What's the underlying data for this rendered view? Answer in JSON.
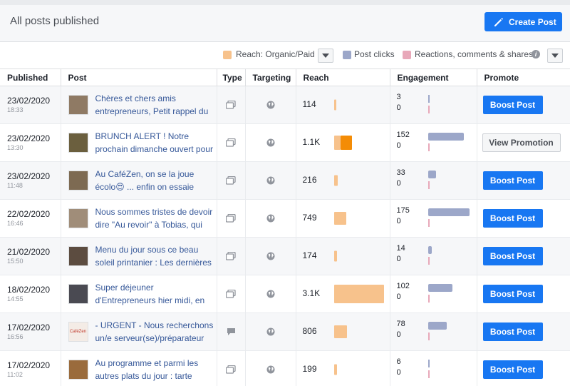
{
  "header": {
    "title": "All posts published",
    "create_label": "Create Post"
  },
  "legend": {
    "reach_label": "Reach: Organic/Paid",
    "clicks_label": "Post clicks",
    "reactions_label": "Reactions, comments & shares",
    "colors": {
      "organic": "#f7c28c",
      "paid": "#f48c06",
      "clicks": "#9ca7c9",
      "reactions": "#e8a8b9"
    }
  },
  "columns": [
    "Published",
    "Post",
    "Type",
    "Targeting",
    "Reach",
    "Engagement",
    "Promote"
  ],
  "rows": [
    {
      "date": "23/02/2020",
      "time": "18:33",
      "text": "Chères et chers amis entrepreneurs, Petit rappel du",
      "thumb": "#8f7a64",
      "type": "photo",
      "reach": "114",
      "organic": 114,
      "paid": 0,
      "clicks": "3",
      "clicks_v": 3,
      "reactions": "0",
      "reactions_v": 0,
      "promote": "Boost Post",
      "promote_kind": "boost"
    },
    {
      "date": "23/02/2020",
      "time": "13:30",
      "text": "BRUNCH ALERT ! Notre prochain dimanche ouvert pour",
      "thumb": "#6b5f3e",
      "type": "photo",
      "reach": "1.1K",
      "organic": 400,
      "paid": 700,
      "clicks": "152",
      "clicks_v": 152,
      "reactions": "0",
      "reactions_v": 0,
      "promote": "View Promotion",
      "promote_kind": "view"
    },
    {
      "date": "23/02/2020",
      "time": "11:48",
      "text": "Au CaféZen, on se la joue écolo😍 ... enfin on essaie",
      "thumb": "#7d6a52",
      "type": "photo",
      "reach": "216",
      "organic": 216,
      "paid": 0,
      "clicks": "33",
      "clicks_v": 33,
      "reactions": "0",
      "reactions_v": 0,
      "promote": "Boost Post",
      "promote_kind": "boost"
    },
    {
      "date": "22/02/2020",
      "time": "16:46",
      "text": "Nous sommes tristes de devoir dire \"Au revoir\" à Tobias, qui",
      "thumb": "#a08d79",
      "type": "photo",
      "reach": "749",
      "organic": 749,
      "paid": 0,
      "clicks": "175",
      "clicks_v": 175,
      "reactions": "0",
      "reactions_v": 0,
      "promote": "Boost Post",
      "promote_kind": "boost"
    },
    {
      "date": "21/02/2020",
      "time": "15:50",
      "text": "Menu du jour sous ce beau soleil printanier : Les dernières",
      "thumb": "#5c4c40",
      "type": "photo",
      "reach": "174",
      "organic": 174,
      "paid": 0,
      "clicks": "14",
      "clicks_v": 14,
      "reactions": "0",
      "reactions_v": 0,
      "promote": "Boost Post",
      "promote_kind": "boost"
    },
    {
      "date": "18/02/2020",
      "time": "14:55",
      "text": "Super déjeuner d'Entrepreneurs hier midi, en",
      "thumb": "#4a4a52",
      "type": "photo",
      "reach": "3.1K",
      "organic": 3100,
      "paid": 0,
      "clicks": "102",
      "clicks_v": 102,
      "reactions": "0",
      "reactions_v": 0,
      "promote": "Boost Post",
      "promote_kind": "boost"
    },
    {
      "date": "17/02/2020",
      "time": "16:56",
      "text": "- URGENT - Nous recherchons un/e serveur(se)/préparateur",
      "thumb": "#f4ece6",
      "thumb_text": "CaféZen",
      "type": "status",
      "reach": "806",
      "organic": 806,
      "paid": 0,
      "clicks": "78",
      "clicks_v": 78,
      "reactions": "0",
      "reactions_v": 0,
      "promote": "Boost Post",
      "promote_kind": "boost"
    },
    {
      "date": "17/02/2020",
      "time": "11:02",
      "text": "Au programme et parmi les autres plats du jour : tarte",
      "thumb": "#9a6b3c",
      "type": "photo",
      "reach": "199",
      "organic": 199,
      "paid": 0,
      "clicks": "6",
      "clicks_v": 6,
      "reactions": "0",
      "reactions_v": 0,
      "promote": "Boost Post",
      "promote_kind": "boost"
    }
  ]
}
